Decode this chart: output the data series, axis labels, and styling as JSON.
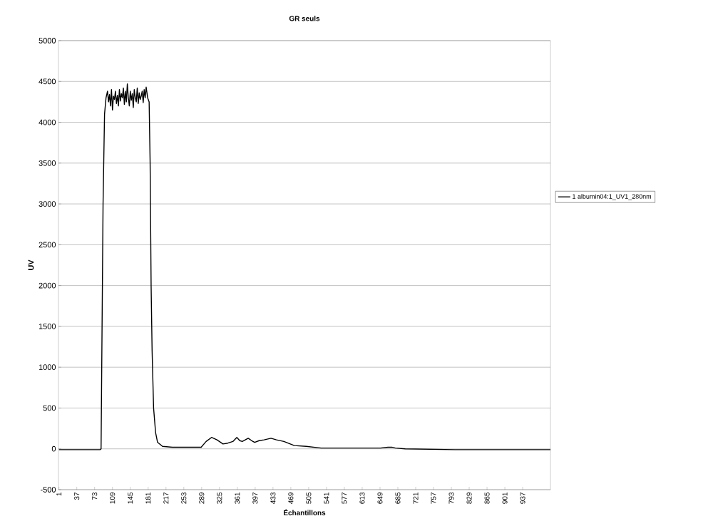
{
  "chart_data": {
    "type": "line",
    "title": "GR seuls",
    "xlabel": "Échantillons",
    "ylabel": "UV",
    "xlim": [
      0,
      993
    ],
    "ylim": [
      -500,
      5000
    ],
    "xticks": [
      1,
      37,
      73,
      109,
      145,
      181,
      217,
      253,
      289,
      325,
      361,
      397,
      433,
      469,
      505,
      541,
      577,
      613,
      649,
      685,
      721,
      757,
      793,
      829,
      865,
      901,
      937
    ],
    "yticks": [
      -500,
      0,
      500,
      1000,
      1500,
      2000,
      2500,
      3000,
      3500,
      4000,
      4500,
      5000
    ],
    "grid": "y",
    "legend": "right",
    "series": [
      {
        "name": "1 albumin04:1_UV1_280nm",
        "color": "#000000",
        "x": [
          1,
          20,
          40,
          60,
          84,
          86,
          88,
          90,
          93,
          96,
          99,
          101,
          103,
          105,
          107,
          109,
          111,
          113,
          115,
          117,
          119,
          121,
          123,
          125,
          127,
          129,
          131,
          133,
          135,
          137,
          139,
          141,
          143,
          145,
          147,
          149,
          151,
          153,
          155,
          157,
          159,
          161,
          163,
          165,
          167,
          169,
          171,
          173,
          175,
          177,
          180,
          183,
          185,
          187,
          189,
          192,
          196,
          200,
          210,
          230,
          250,
          270,
          288,
          298,
          309,
          320,
          332,
          342,
          352,
          360,
          366,
          371,
          377,
          383,
          390,
          396,
          405,
          415,
          429,
          440,
          455,
          476,
          500,
          530,
          600,
          650,
          665,
          673,
          680,
          700,
          800,
          900,
          993
        ],
        "values": [
          -10,
          -10,
          -10,
          -10,
          -10,
          0,
          1500,
          3000,
          4100,
          4300,
          4380,
          4250,
          4340,
          4200,
          4400,
          4150,
          4320,
          4280,
          4380,
          4230,
          4330,
          4200,
          4400,
          4260,
          4350,
          4300,
          4420,
          4220,
          4380,
          4250,
          4470,
          4300,
          4200,
          4380,
          4270,
          4350,
          4180,
          4400,
          4300,
          4250,
          4420,
          4230,
          4360,
          4280,
          4320,
          4380,
          4240,
          4400,
          4300,
          4430,
          4300,
          4250,
          3500,
          2000,
          1200,
          500,
          200,
          80,
          30,
          20,
          20,
          20,
          20,
          90,
          140,
          110,
          60,
          70,
          90,
          140,
          100,
          90,
          110,
          130,
          100,
          80,
          100,
          110,
          130,
          110,
          90,
          40,
          30,
          10,
          10,
          10,
          20,
          20,
          10,
          0,
          -10,
          -10,
          -10
        ]
      }
    ]
  }
}
